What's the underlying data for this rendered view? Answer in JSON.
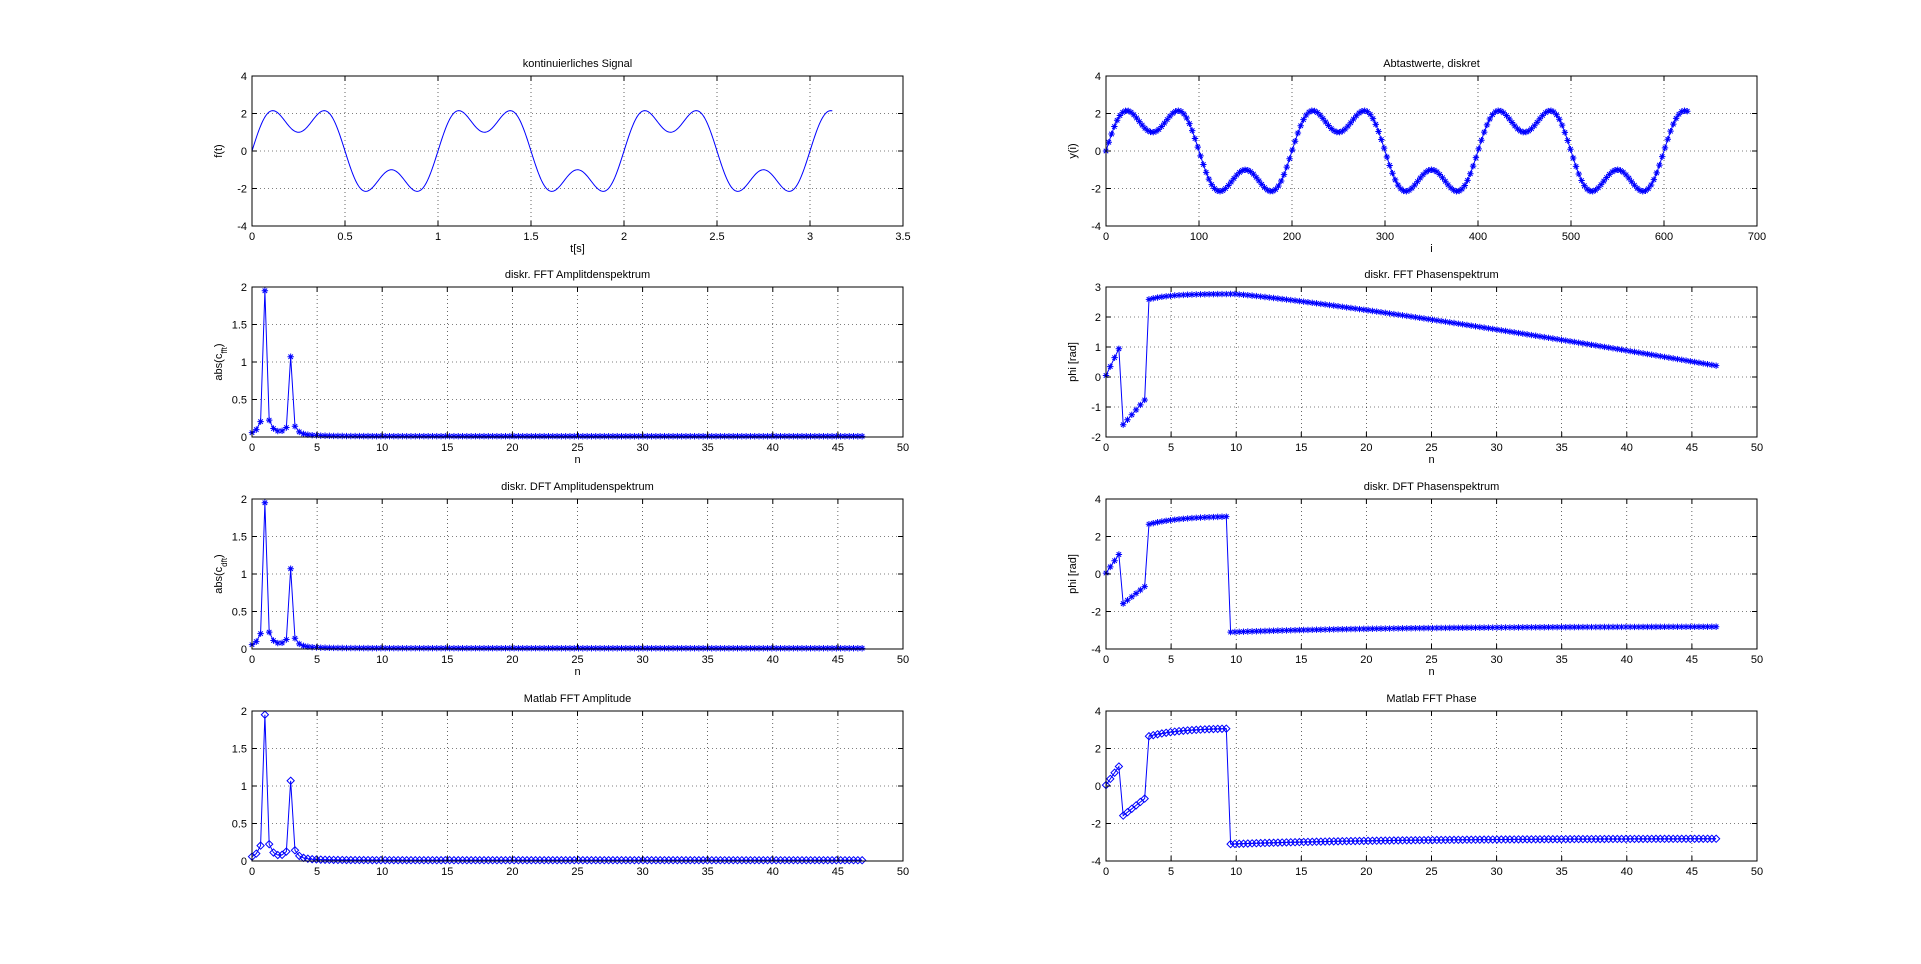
{
  "figure": {
    "background": "#ffffff",
    "line_color": "#0000ff",
    "grid_style": "dotted"
  },
  "chart_data": [
    {
      "id": "p1",
      "type": "line",
      "title": "kontinuierliches Signal",
      "xlabel": "t[s]",
      "ylabel": "f(t)",
      "xlim": [
        0,
        3.5
      ],
      "ylim": [
        -4,
        4
      ],
      "xticks": [
        0,
        0.5,
        1,
        1.5,
        2,
        2.5,
        3,
        3.5
      ],
      "xtick_labels": [
        "0",
        "0.5",
        "1",
        "1.5",
        "2",
        "2.5",
        "3",
        "3.5"
      ],
      "yticks": [
        -4,
        -2,
        0,
        2,
        4
      ],
      "ytick_labels": [
        "-4",
        "-2",
        "0",
        "2",
        "4"
      ],
      "grid": true,
      "marker": "none",
      "series": [
        {
          "kind": "formula",
          "x_start": 0,
          "x_end": 3.12,
          "samples": 700,
          "terms": [
            {
              "amp": 2,
              "freq": 1
            },
            {
              "amp": 1,
              "freq": 3
            }
          ]
        }
      ]
    },
    {
      "id": "p2",
      "type": "scatter",
      "title": "Abtastwerte, diskret",
      "xlabel": "i",
      "ylabel": "y(i)",
      "xlim": [
        0,
        700
      ],
      "ylim": [
        -4,
        4
      ],
      "xticks": [
        0,
        100,
        200,
        300,
        400,
        500,
        600,
        700
      ],
      "xtick_labels": [
        "0",
        "100",
        "200",
        "300",
        "400",
        "500",
        "600",
        "700"
      ],
      "yticks": [
        -4,
        -2,
        0,
        2,
        4
      ],
      "ytick_labels": [
        "-4",
        "-2",
        "0",
        "2",
        "4"
      ],
      "grid": true,
      "marker": "star",
      "series": [
        {
          "kind": "formula",
          "x_start": 0,
          "x_end": 625,
          "samples": 210,
          "terms": [
            {
              "amp": 2,
              "freq": 0.005
            },
            {
              "amp": 1,
              "freq": 0.015
            }
          ]
        }
      ]
    },
    {
      "id": "p3",
      "type": "line",
      "title": "diskr. FFT Amplitdenspektrum",
      "xlabel": "n",
      "ylabel": "abs(c_fft)",
      "xlim": [
        0,
        50
      ],
      "ylim": [
        0,
        2
      ],
      "xticks": [
        0,
        5,
        10,
        15,
        20,
        25,
        30,
        35,
        40,
        45,
        50
      ],
      "xtick_labels": [
        "0",
        "5",
        "10",
        "15",
        "20",
        "25",
        "30",
        "35",
        "40",
        "45",
        "50"
      ],
      "yticks": [
        0,
        0.5,
        1,
        1.5,
        2
      ],
      "ytick_labels": [
        "0",
        "0.5",
        "1",
        "1.5",
        "2"
      ],
      "grid": true,
      "marker": "star",
      "series": [
        {
          "kind": "spectrum_amp",
          "step": 0.33,
          "x_end": 47.1,
          "peaks": [
            {
              "x": 1,
              "h": 1.95
            },
            {
              "x": 3,
              "h": 1.07
            }
          ],
          "floor": 0.01
        }
      ]
    },
    {
      "id": "p4",
      "type": "line",
      "title": "diskr. FFT Phasenspektrum",
      "xlabel": "n",
      "ylabel": "phi [rad]",
      "xlim": [
        0,
        50
      ],
      "ylim": [
        -2,
        3
      ],
      "xticks": [
        0,
        5,
        10,
        15,
        20,
        25,
        30,
        35,
        40,
        45,
        50
      ],
      "xtick_labels": [
        "0",
        "5",
        "10",
        "15",
        "20",
        "25",
        "30",
        "35",
        "40",
        "45",
        "50"
      ],
      "yticks": [
        -2,
        -1,
        0,
        1,
        2,
        3
      ],
      "ytick_labels": [
        "-2",
        "-1",
        "0",
        "1",
        "2",
        "3"
      ],
      "grid": true,
      "marker": "star",
      "series": [
        {
          "kind": "phase_fft",
          "step": 0.33,
          "x_end": 47.1
        }
      ]
    },
    {
      "id": "p5",
      "type": "line",
      "title": "diskr. DFT Amplitudenspektrum",
      "xlabel": "n",
      "ylabel": "abs(c_dft)",
      "xlim": [
        0,
        50
      ],
      "ylim": [
        0,
        2
      ],
      "xticks": [
        0,
        5,
        10,
        15,
        20,
        25,
        30,
        35,
        40,
        45,
        50
      ],
      "xtick_labels": [
        "0",
        "5",
        "10",
        "15",
        "20",
        "25",
        "30",
        "35",
        "40",
        "45",
        "50"
      ],
      "yticks": [
        0,
        0.5,
        1,
        1.5,
        2
      ],
      "ytick_labels": [
        "0",
        "0.5",
        "1",
        "1.5",
        "2"
      ],
      "grid": true,
      "marker": "star",
      "series": [
        {
          "kind": "spectrum_amp",
          "step": 0.33,
          "x_end": 47.1,
          "peaks": [
            {
              "x": 1,
              "h": 1.95
            },
            {
              "x": 3,
              "h": 1.07
            }
          ],
          "floor": 0.01
        }
      ]
    },
    {
      "id": "p6",
      "type": "line",
      "title": "diskr. DFT Phasenspektrum",
      "xlabel": "n",
      "ylabel": "phi [rad]",
      "xlim": [
        0,
        50
      ],
      "ylim": [
        -4,
        4
      ],
      "xticks": [
        0,
        5,
        10,
        15,
        20,
        25,
        30,
        35,
        40,
        45,
        50
      ],
      "xtick_labels": [
        "0",
        "5",
        "10",
        "15",
        "20",
        "25",
        "30",
        "35",
        "40",
        "45",
        "50"
      ],
      "yticks": [
        -4,
        -2,
        0,
        2,
        4
      ],
      "ytick_labels": [
        "-4",
        "-2",
        "0",
        "2",
        "4"
      ],
      "grid": true,
      "marker": "star",
      "series": [
        {
          "kind": "phase_dft",
          "step": 0.33,
          "x_end": 47.1
        }
      ]
    },
    {
      "id": "p7",
      "type": "line",
      "title": "Matlab FFT Amplitude",
      "xlabel": "",
      "ylabel": "",
      "xlim": [
        0,
        50
      ],
      "ylim": [
        0,
        2
      ],
      "xticks": [
        0,
        5,
        10,
        15,
        20,
        25,
        30,
        35,
        40,
        45,
        50
      ],
      "xtick_labels": [
        "0",
        "5",
        "10",
        "15",
        "20",
        "25",
        "30",
        "35",
        "40",
        "45",
        "50"
      ],
      "yticks": [
        0,
        0.5,
        1,
        1.5,
        2
      ],
      "ytick_labels": [
        "0",
        "0.5",
        "1",
        "1.5",
        "2"
      ],
      "grid": true,
      "marker": "diamond",
      "series": [
        {
          "kind": "spectrum_amp",
          "step": 0.33,
          "x_end": 47.1,
          "peaks": [
            {
              "x": 1,
              "h": 1.95
            },
            {
              "x": 3,
              "h": 1.07
            }
          ],
          "floor": 0.01
        }
      ]
    },
    {
      "id": "p8",
      "type": "line",
      "title": "Matlab FFT Phase",
      "xlabel": "",
      "ylabel": "",
      "xlim": [
        0,
        50
      ],
      "ylim": [
        -4,
        4
      ],
      "xticks": [
        0,
        5,
        10,
        15,
        20,
        25,
        30,
        35,
        40,
        45,
        50
      ],
      "xtick_labels": [
        "0",
        "5",
        "10",
        "15",
        "20",
        "25",
        "30",
        "35",
        "40",
        "45",
        "50"
      ],
      "yticks": [
        -4,
        -2,
        0,
        2,
        4
      ],
      "ytick_labels": [
        "-4",
        "-2",
        "0",
        "2",
        "4"
      ],
      "grid": true,
      "marker": "diamond",
      "series": [
        {
          "kind": "phase_dft",
          "step": 0.33,
          "x_end": 47.1
        }
      ]
    }
  ]
}
